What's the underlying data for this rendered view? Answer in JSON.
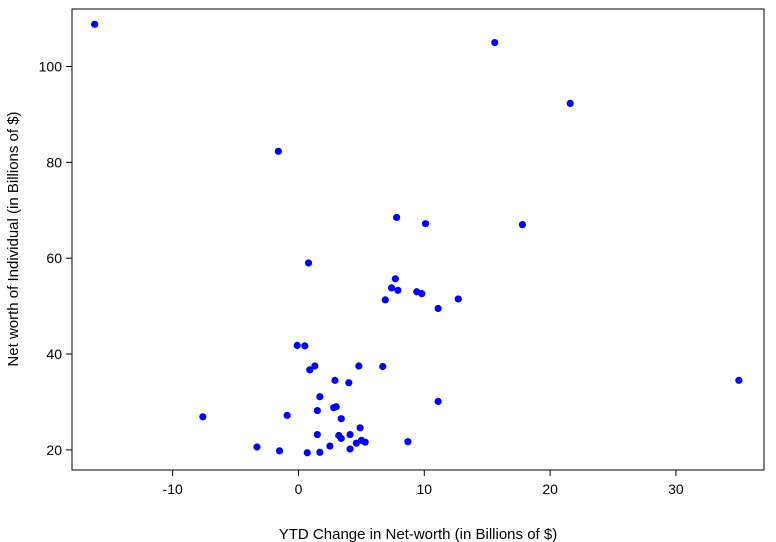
{
  "chart_data": {
    "type": "scatter",
    "xlabel": "YTD Change in Net-worth (in Billions of $)",
    "ylabel": "Net worth of Individual (in Billions of $)",
    "xlim": [
      -18,
      37
    ],
    "ylim": [
      15.8,
      112
    ],
    "xticks": [
      -10,
      0,
      10,
      20,
      30
    ],
    "yticks": [
      20,
      40,
      60,
      80,
      100
    ],
    "grid": false,
    "point_color": "#0000ff",
    "points": [
      {
        "x": -16.2,
        "y": 108.8
      },
      {
        "x": 15.6,
        "y": 105.0
      },
      {
        "x": 21.6,
        "y": 92.3
      },
      {
        "x": -1.6,
        "y": 82.3
      },
      {
        "x": 7.8,
        "y": 68.5
      },
      {
        "x": 10.1,
        "y": 67.2
      },
      {
        "x": 17.8,
        "y": 67.0
      },
      {
        "x": 0.8,
        "y": 59.0
      },
      {
        "x": 7.7,
        "y": 55.7
      },
      {
        "x": 7.4,
        "y": 53.8
      },
      {
        "x": 7.9,
        "y": 53.3
      },
      {
        "x": 9.4,
        "y": 53.0
      },
      {
        "x": 9.8,
        "y": 52.6
      },
      {
        "x": 6.9,
        "y": 51.3
      },
      {
        "x": 12.7,
        "y": 51.5
      },
      {
        "x": 11.1,
        "y": 49.5
      },
      {
        "x": -0.1,
        "y": 41.8
      },
      {
        "x": 0.5,
        "y": 41.7
      },
      {
        "x": 1.3,
        "y": 37.5
      },
      {
        "x": 0.9,
        "y": 36.7
      },
      {
        "x": 4.8,
        "y": 37.5
      },
      {
        "x": 6.7,
        "y": 37.4
      },
      {
        "x": 2.9,
        "y": 34.5
      },
      {
        "x": 4.0,
        "y": 34.0
      },
      {
        "x": 35.0,
        "y": 34.5
      },
      {
        "x": -7.6,
        "y": 26.9
      },
      {
        "x": -0.9,
        "y": 27.2
      },
      {
        "x": 1.7,
        "y": 31.1
      },
      {
        "x": 11.1,
        "y": 30.1
      },
      {
        "x": 2.8,
        "y": 28.8
      },
      {
        "x": 3.0,
        "y": 29.0
      },
      {
        "x": 1.5,
        "y": 28.2
      },
      {
        "x": 3.4,
        "y": 26.5
      },
      {
        "x": 4.9,
        "y": 24.6
      },
      {
        "x": 1.5,
        "y": 23.2
      },
      {
        "x": 3.2,
        "y": 23.0
      },
      {
        "x": 4.1,
        "y": 23.2
      },
      {
        "x": 3.4,
        "y": 22.4
      },
      {
        "x": 5.0,
        "y": 22.0
      },
      {
        "x": 5.3,
        "y": 21.6
      },
      {
        "x": 4.6,
        "y": 21.4
      },
      {
        "x": 8.7,
        "y": 21.7
      },
      {
        "x": 2.5,
        "y": 20.8
      },
      {
        "x": -3.3,
        "y": 20.6
      },
      {
        "x": 4.1,
        "y": 20.2
      },
      {
        "x": -1.5,
        "y": 19.8
      },
      {
        "x": 0.7,
        "y": 19.4
      },
      {
        "x": 1.7,
        "y": 19.5
      }
    ]
  }
}
